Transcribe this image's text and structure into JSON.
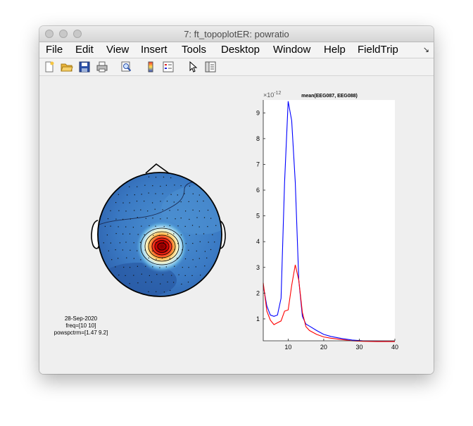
{
  "window": {
    "title": "7: ft_topoplotER: powratio"
  },
  "menu": {
    "items": [
      "File",
      "Edit",
      "View",
      "Insert",
      "Tools",
      "Desktop",
      "Window",
      "Help",
      "FieldTrip"
    ],
    "overflow_icon": "double-arrow-icon"
  },
  "toolbar": {
    "tools": [
      {
        "name": "new-figure-icon"
      },
      {
        "name": "open-folder-icon"
      },
      {
        "name": "save-icon"
      },
      {
        "name": "print-icon"
      },
      {
        "name": "print-preview-icon"
      },
      {
        "name": "colorbar-icon"
      },
      {
        "name": "legend-icon"
      },
      {
        "name": "pointer-icon"
      },
      {
        "name": "property-inspector-icon"
      }
    ]
  },
  "topoplot": {
    "info": [
      "28-Sep-2020",
      "freq=[10 10]",
      "powspctrm=[1.47 9.2]"
    ],
    "colormap": "jet",
    "peak_location": "central-posterior"
  },
  "chart_data": {
    "type": "line",
    "title": "mean(EEG087, EEG088)",
    "exponent_label": "×10",
    "exponent_power": "-12",
    "xlim": [
      3,
      40
    ],
    "ylim": [
      0.15,
      9.5
    ],
    "xticks": [
      10,
      20,
      30,
      40
    ],
    "yticks": [
      1,
      2,
      3,
      4,
      5,
      6,
      7,
      8,
      9
    ],
    "grid": false,
    "series": [
      {
        "color": "#0000ff",
        "x": [
          3,
          4,
          5,
          6,
          7,
          8,
          9,
          10,
          11,
          12,
          13,
          14,
          15,
          16,
          18,
          20,
          22,
          25,
          28,
          31,
          35,
          40
        ],
        "y": [
          2.3,
          1.5,
          1.15,
          1.1,
          1.15,
          1.8,
          6.3,
          9.45,
          8.7,
          6.3,
          2.5,
          1.1,
          0.8,
          0.72,
          0.55,
          0.4,
          0.32,
          0.24,
          0.18,
          0.15,
          0.14,
          0.13
        ]
      },
      {
        "color": "#ff0000",
        "x": [
          3,
          4,
          5,
          6,
          7,
          8,
          9,
          10,
          11,
          12,
          13,
          14,
          15,
          16,
          18,
          20,
          22,
          25,
          28,
          31,
          35,
          40
        ],
        "y": [
          2.4,
          1.3,
          0.95,
          0.78,
          0.85,
          0.92,
          1.3,
          1.35,
          2.3,
          3.1,
          2.5,
          1.25,
          0.7,
          0.55,
          0.4,
          0.3,
          0.25,
          0.2,
          0.15,
          0.13,
          0.12,
          0.12
        ]
      }
    ]
  }
}
